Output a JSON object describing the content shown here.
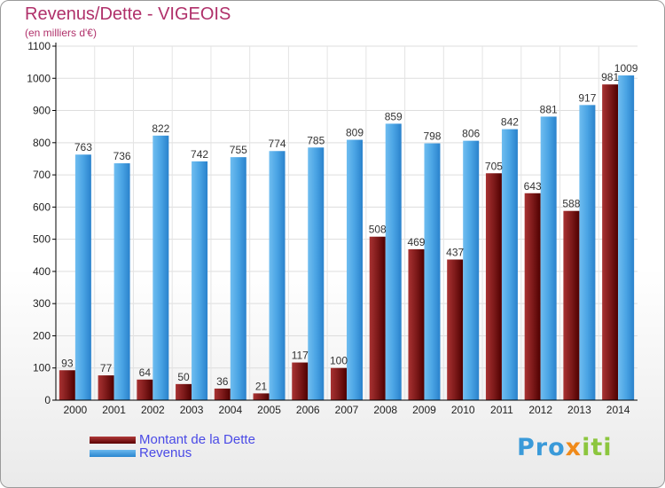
{
  "header": {
    "title": "Revenus/Dette - VIGEOIS",
    "subtitle": "(en milliers d'€)"
  },
  "legend": {
    "items": [
      {
        "label": "Montant de la Dette",
        "color": "#7a1414"
      },
      {
        "label": "Revenus",
        "color": "#3a9ad9"
      }
    ]
  },
  "logo": {
    "text": "Proxiti"
  },
  "chart_data": {
    "type": "bar",
    "title": "Revenus/Dette - VIGEOIS",
    "ylabel": "(en milliers d'€)",
    "xlabel": "",
    "categories": [
      "2000",
      "2001",
      "2002",
      "2003",
      "2004",
      "2005",
      "2006",
      "2007",
      "2008",
      "2009",
      "2010",
      "2011",
      "2012",
      "2013",
      "2014"
    ],
    "series": [
      {
        "name": "Montant de la Dette",
        "color": "#7a1414",
        "values": [
          93,
          77,
          64,
          50,
          36,
          21,
          117,
          100,
          508,
          469,
          437,
          705,
          643,
          588,
          981
        ]
      },
      {
        "name": "Revenus",
        "color": "#3a9ad9",
        "values": [
          763,
          736,
          822,
          742,
          755,
          774,
          785,
          809,
          859,
          798,
          806,
          842,
          881,
          917,
          1009
        ]
      }
    ],
    "ylim": [
      0,
      1100
    ],
    "yticks": [
      0,
      100,
      200,
      300,
      400,
      500,
      600,
      700,
      800,
      900,
      1000,
      1100
    ],
    "grid": true,
    "legend_position": "bottom-left"
  }
}
